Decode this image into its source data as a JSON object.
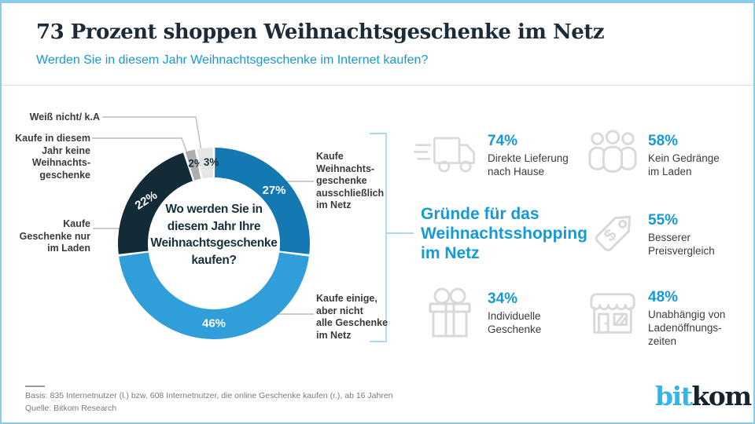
{
  "header": {
    "title": "73 Prozent shoppen Weihnachtsgeschenke im Netz",
    "subtitle": "Werden Sie in diesem Jahr Weihnachtsgeschenke im Internet kaufen?"
  },
  "chart_data": {
    "type": "pie",
    "variant": "donut",
    "title": "Wo werden Sie in\ndiesem Jahr Ihre\nWeihnachtsgeschenke\nkaufen?",
    "unit": "%",
    "segments": [
      {
        "label": "Kaufe Weihnachtsgeschenke ausschließlich im Netz",
        "value": 27,
        "color": "#1478B2",
        "label_color": "#FFFFFF"
      },
      {
        "label": "Kaufe einige, aber nicht alle Geschenke im Netz",
        "value": 46,
        "color": "#2F9ED9",
        "label_color": "#FFFFFF"
      },
      {
        "label": "Kaufe Geschenke nur im Laden",
        "value": 22,
        "color": "#122B37",
        "label_color": "#FFFFFF"
      },
      {
        "label": "Kaufe in diesem Jahr keine Weihnachtsgeschenke",
        "value": 2,
        "color": "#AEAEAE",
        "label_color": "#16303C"
      },
      {
        "label": "Weiß nicht/ k.A",
        "value": 3,
        "color": "#E6E6E6",
        "label_color": "#16303C"
      }
    ],
    "callouts": {
      "weiss": "Weiß nicht/ k.A",
      "keine": "Kaufe in diesem\nJahr keine\nWeihnachts-\ngeschenke",
      "laden": "Kaufe\nGeschenke nur\nim Laden",
      "excl": "Kaufe\nWeihnachts-\ngeschenke\nausschließlich\nim Netz",
      "einige": "Kaufe einige,\naber nicht\nalle Geschenke\nim Netz"
    }
  },
  "reasons": {
    "heading": "Gründe für das\nWeihnachtsshopping\nim Netz",
    "items": [
      {
        "icon": "delivery-truck",
        "value": 74,
        "value_display": "74%",
        "caption": "Direkte Lieferung\nnach Hause"
      },
      {
        "icon": "people-crowd",
        "value": 58,
        "value_display": "58%",
        "caption": "Kein Gedränge\nim Laden"
      },
      {
        "icon": "price-tag",
        "value": 55,
        "value_display": "55%",
        "caption": "Besserer\nPreisvergleich"
      },
      {
        "icon": "gift-box",
        "value": 34,
        "value_display": "34%",
        "caption": "Individuelle\nGeschenke"
      },
      {
        "icon": "store-front",
        "value": 48,
        "value_display": "48%",
        "caption": "Unabhängig von\nLadenöffnungs-\nzeiten"
      }
    ]
  },
  "footer": {
    "basis": "Basis: 835 Internetnutzer (l.) bzw. 608 Internetnutzer, die online Geschenke kaufen (r.), ab 16 Jahren",
    "quelle": "Quelle: Bitkom Research"
  },
  "logo": {
    "bit": "bit",
    "kom": "kom"
  },
  "colors": {
    "accent_blue": "#1599D8",
    "border_blue": "#8BCBE9",
    "bracket_blue": "#8FCDEC",
    "dark_navy": "#16303C",
    "icon_gray": "#D9D9D9",
    "leader_gray": "#BBBBBB"
  }
}
